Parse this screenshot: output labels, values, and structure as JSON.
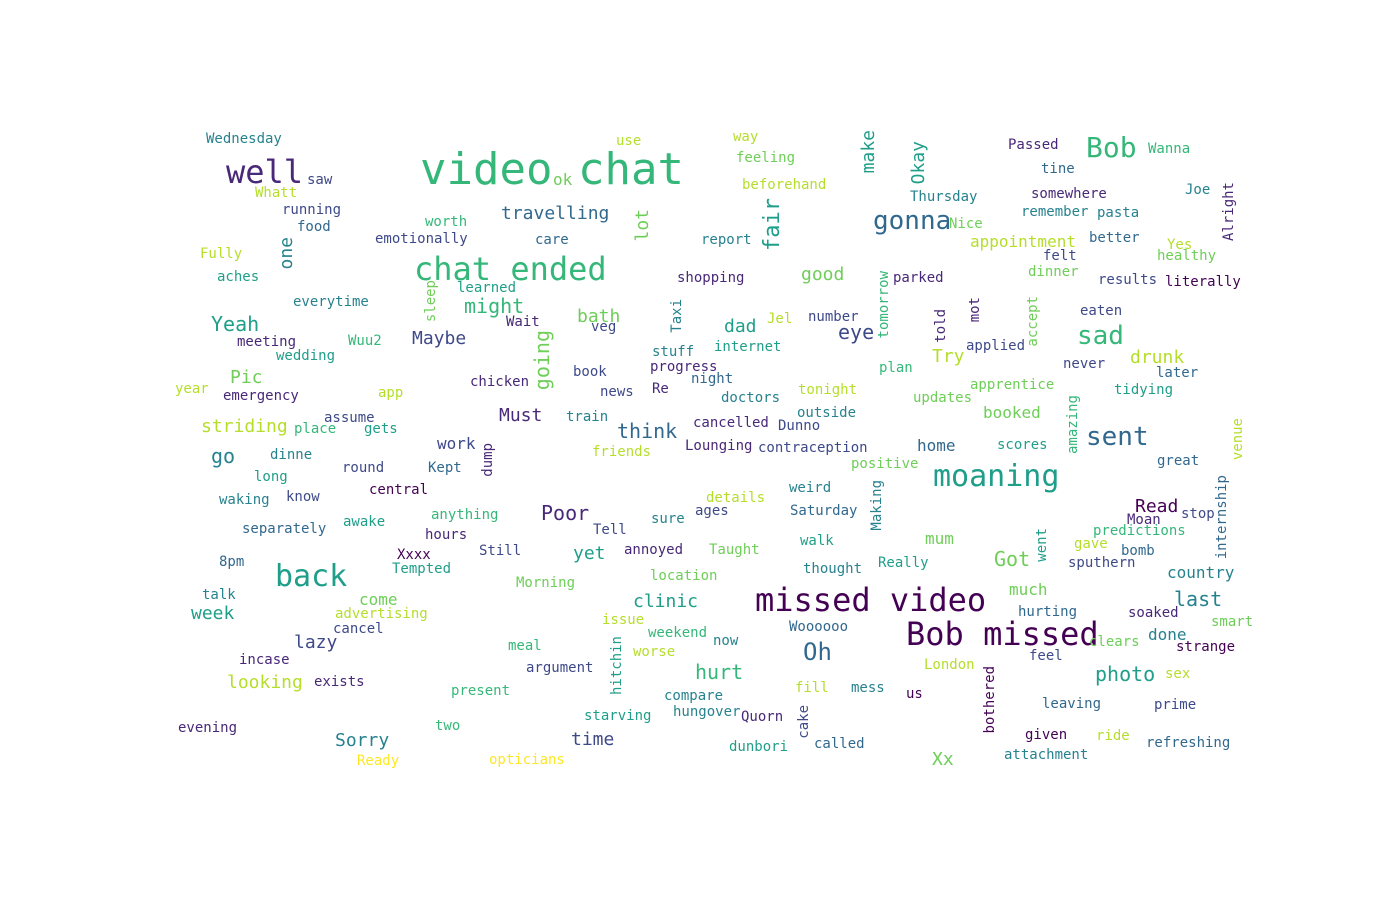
{
  "colors": {
    "background": "#ffffff",
    "palette": [
      "#440154",
      "#482878",
      "#3e4989",
      "#31688e",
      "#26828e",
      "#1f9e89",
      "#35b779",
      "#6ece58",
      "#b5de2b",
      "#fde725"
    ]
  },
  "words": [
    {
      "text": "video",
      "c": 6,
      "vertical": false
    },
    {
      "text": "chat",
      "c": 6,
      "vertical": false
    },
    {
      "text": "ok",
      "c": 7,
      "vertical": false
    },
    {
      "text": "chat ended",
      "c": 6,
      "vertical": false
    },
    {
      "text": "missed video",
      "c": 0,
      "vertical": false
    },
    {
      "text": "Bob missed",
      "c": 0,
      "vertical": false
    },
    {
      "text": "well",
      "c": 1,
      "vertical": false
    },
    {
      "text": "back",
      "c": 5,
      "vertical": false
    },
    {
      "text": "moaning",
      "c": 5,
      "vertical": false
    },
    {
      "text": "sent",
      "c": 3,
      "vertical": false
    },
    {
      "text": "gonna",
      "c": 3,
      "vertical": false
    },
    {
      "text": "Bob",
      "c": 6,
      "vertical": false
    },
    {
      "text": "sad",
      "c": 6,
      "vertical": false
    },
    {
      "text": "Oh",
      "c": 3,
      "vertical": false
    },
    {
      "text": "travelling",
      "c": 3,
      "vertical": false
    },
    {
      "text": "might",
      "c": 6,
      "vertical": false
    },
    {
      "text": "Yeah",
      "c": 5,
      "vertical": false
    },
    {
      "text": "think",
      "c": 3,
      "vertical": false
    },
    {
      "text": "eye",
      "c": 2,
      "vertical": false
    },
    {
      "text": "Poor",
      "c": 1,
      "vertical": false
    },
    {
      "text": "hurt",
      "c": 6,
      "vertical": false
    },
    {
      "text": "photo",
      "c": 5,
      "vertical": false
    },
    {
      "text": "last",
      "c": 4,
      "vertical": false
    },
    {
      "text": "Got",
      "c": 7,
      "vertical": false
    },
    {
      "text": "go",
      "c": 4,
      "vertical": false
    },
    {
      "text": "appointment",
      "c": 8,
      "vertical": false
    },
    {
      "text": "work",
      "c": 2,
      "vertical": false
    },
    {
      "text": "home",
      "c": 3,
      "vertical": false
    },
    {
      "text": "booked",
      "c": 7,
      "vertical": false
    },
    {
      "text": "lazy",
      "c": 2,
      "vertical": false
    },
    {
      "text": "clinic",
      "c": 5,
      "vertical": false
    },
    {
      "text": "Sorry",
      "c": 4,
      "vertical": false
    },
    {
      "text": "time",
      "c": 2,
      "vertical": false
    },
    {
      "text": "yet",
      "c": 5,
      "vertical": false
    },
    {
      "text": "mum",
      "c": 7,
      "vertical": false
    },
    {
      "text": "much",
      "c": 7,
      "vertical": false
    },
    {
      "text": "country",
      "c": 4,
      "vertical": false
    },
    {
      "text": "done",
      "c": 4,
      "vertical": false
    },
    {
      "text": "looking",
      "c": 8,
      "vertical": false
    },
    {
      "text": "Must",
      "c": 1,
      "vertical": false
    },
    {
      "text": "Maybe",
      "c": 2,
      "vertical": false
    },
    {
      "text": "bath",
      "c": 7,
      "vertical": false
    },
    {
      "text": "dad",
      "c": 5,
      "vertical": false
    },
    {
      "text": "good",
      "c": 7,
      "vertical": false
    },
    {
      "text": "drunk",
      "c": 8,
      "vertical": false
    },
    {
      "text": "Try",
      "c": 8,
      "vertical": false
    },
    {
      "text": "Pic",
      "c": 7,
      "vertical": false
    },
    {
      "text": "striding",
      "c": 8,
      "vertical": false
    },
    {
      "text": "come",
      "c": 7,
      "vertical": false
    },
    {
      "text": "week",
      "c": 5,
      "vertical": false
    },
    {
      "text": "Read",
      "c": 0,
      "vertical": false
    },
    {
      "text": "Xx",
      "c": 7,
      "vertical": false
    },
    {
      "text": "Wednesday",
      "c": 4,
      "vertical": false
    },
    {
      "text": "use",
      "c": 8,
      "vertical": false
    },
    {
      "text": "way",
      "c": 8,
      "vertical": false
    },
    {
      "text": "feeling",
      "c": 7,
      "vertical": false
    },
    {
      "text": "beforehand",
      "c": 8,
      "vertical": false
    },
    {
      "text": "Passed",
      "c": 1,
      "vertical": false
    },
    {
      "text": "tine",
      "c": 3,
      "vertical": false
    },
    {
      "text": "Wanna",
      "c": 6,
      "vertical": false
    },
    {
      "text": "saw",
      "c": 2,
      "vertical": false
    },
    {
      "text": "Whatt",
      "c": 8,
      "vertical": false
    },
    {
      "text": "running",
      "c": 2,
      "vertical": false
    },
    {
      "text": "food",
      "c": 3,
      "vertical": false
    },
    {
      "text": "Thursday",
      "c": 4,
      "vertical": false
    },
    {
      "text": "somewhere",
      "c": 1,
      "vertical": false
    },
    {
      "text": "Joe",
      "c": 4,
      "vertical": false
    },
    {
      "text": "remember",
      "c": 4,
      "vertical": false
    },
    {
      "text": "pasta",
      "c": 4,
      "vertical": false
    },
    {
      "text": "worth",
      "c": 6,
      "vertical": false
    },
    {
      "text": "Nice",
      "c": 7,
      "vertical": false
    },
    {
      "text": "emotionally",
      "c": 2,
      "vertical": false
    },
    {
      "text": "care",
      "c": 3,
      "vertical": false
    },
    {
      "text": "report",
      "c": 4,
      "vertical": false
    },
    {
      "text": "better",
      "c": 3,
      "vertical": false
    },
    {
      "text": "Yes",
      "c": 8,
      "vertical": false
    },
    {
      "text": "Fully",
      "c": 8,
      "vertical": false
    },
    {
      "text": "felt",
      "c": 2,
      "vertical": false
    },
    {
      "text": "healthy",
      "c": 7,
      "vertical": false
    },
    {
      "text": "aches",
      "c": 5,
      "vertical": false
    },
    {
      "text": "shopping",
      "c": 1,
      "vertical": false
    },
    {
      "text": "parked",
      "c": 1,
      "vertical": false
    },
    {
      "text": "dinner",
      "c": 7,
      "vertical": false
    },
    {
      "text": "results",
      "c": 2,
      "vertical": false
    },
    {
      "text": "literally",
      "c": 0,
      "vertical": false
    },
    {
      "text": "learned",
      "c": 5,
      "vertical": false
    },
    {
      "text": "everytime",
      "c": 4,
      "vertical": false
    },
    {
      "text": "eaten",
      "c": 2,
      "vertical": false
    },
    {
      "text": "Wait",
      "c": 1,
      "vertical": false
    },
    {
      "text": "veg",
      "c": 2,
      "vertical": false
    },
    {
      "text": "Jel",
      "c": 8,
      "vertical": false
    },
    {
      "text": "number",
      "c": 2,
      "vertical": false
    },
    {
      "text": "meeting",
      "c": 1,
      "vertical": false
    },
    {
      "text": "Wuu2",
      "c": 6,
      "vertical": false
    },
    {
      "text": "wedding",
      "c": 5,
      "vertical": false
    },
    {
      "text": "stuff",
      "c": 4,
      "vertical": false
    },
    {
      "text": "internet",
      "c": 5,
      "vertical": false
    },
    {
      "text": "applied",
      "c": 2,
      "vertical": false
    },
    {
      "text": "plan",
      "c": 6,
      "vertical": false
    },
    {
      "text": "never",
      "c": 2,
      "vertical": false
    },
    {
      "text": "progress",
      "c": 1,
      "vertical": false
    },
    {
      "text": "book",
      "c": 2,
      "vertical": false
    },
    {
      "text": "night",
      "c": 3,
      "vertical": false
    },
    {
      "text": "later",
      "c": 3,
      "vertical": false
    },
    {
      "text": "chicken",
      "c": 1,
      "vertical": false
    },
    {
      "text": "year",
      "c": 8,
      "vertical": false
    },
    {
      "text": "app",
      "c": 8,
      "vertical": false
    },
    {
      "text": "news",
      "c": 2,
      "vertical": false
    },
    {
      "text": "Re",
      "c": 1,
      "vertical": false
    },
    {
      "text": "tonight",
      "c": 8,
      "vertical": false
    },
    {
      "text": "apprentice",
      "c": 7,
      "vertical": false
    },
    {
      "text": "tidying",
      "c": 5,
      "vertical": false
    },
    {
      "text": "emergency",
      "c": 1,
      "vertical": false
    },
    {
      "text": "doctors",
      "c": 4,
      "vertical": false
    },
    {
      "text": "updates",
      "c": 7,
      "vertical": false
    },
    {
      "text": "assume",
      "c": 2,
      "vertical": false
    },
    {
      "text": "train",
      "c": 4,
      "vertical": false
    },
    {
      "text": "outside",
      "c": 4,
      "vertical": false
    },
    {
      "text": "place",
      "c": 6,
      "vertical": false
    },
    {
      "text": "gets",
      "c": 5,
      "vertical": false
    },
    {
      "text": "cancelled",
      "c": 1,
      "vertical": false
    },
    {
      "text": "Dunno",
      "c": 2,
      "vertical": false
    },
    {
      "text": "Lounging",
      "c": 1,
      "vertical": false
    },
    {
      "text": "contraception",
      "c": 2,
      "vertical": false
    },
    {
      "text": "friends",
      "c": 8,
      "vertical": false
    },
    {
      "text": "scores",
      "c": 5,
      "vertical": false
    },
    {
      "text": "dinne",
      "c": 4,
      "vertical": false
    },
    {
      "text": "positive",
      "c": 7,
      "vertical": false
    },
    {
      "text": "great",
      "c": 3,
      "vertical": false
    },
    {
      "text": "round",
      "c": 2,
      "vertical": false
    },
    {
      "text": "Kept",
      "c": 3,
      "vertical": false
    },
    {
      "text": "long",
      "c": 5,
      "vertical": false
    },
    {
      "text": "central",
      "c": 0,
      "vertical": false
    },
    {
      "text": "know",
      "c": 2,
      "vertical": false
    },
    {
      "text": "weird",
      "c": 4,
      "vertical": false
    },
    {
      "text": "waking",
      "c": 4,
      "vertical": false
    },
    {
      "text": "details",
      "c": 8,
      "vertical": false
    },
    {
      "text": "ages",
      "c": 2,
      "vertical": false
    },
    {
      "text": "Saturday",
      "c": 3,
      "vertical": false
    },
    {
      "text": "anything",
      "c": 6,
      "vertical": false
    },
    {
      "text": "sure",
      "c": 4,
      "vertical": false
    },
    {
      "text": "stop",
      "c": 2,
      "vertical": false
    },
    {
      "text": "Moan",
      "c": 1,
      "vertical": false
    },
    {
      "text": "awake",
      "c": 5,
      "vertical": false
    },
    {
      "text": "separately",
      "c": 3,
      "vertical": false
    },
    {
      "text": "Tell",
      "c": 2,
      "vertical": false
    },
    {
      "text": "predictions",
      "c": 6,
      "vertical": false
    },
    {
      "text": "hours",
      "c": 1,
      "vertical": false
    },
    {
      "text": "gave",
      "c": 8,
      "vertical": false
    },
    {
      "text": "bomb",
      "c": 3,
      "vertical": false
    },
    {
      "text": "Still",
      "c": 2,
      "vertical": false
    },
    {
      "text": "annoyed",
      "c": 1,
      "vertical": false
    },
    {
      "text": "Taught",
      "c": 7,
      "vertical": false
    },
    {
      "text": "walk",
      "c": 5,
      "vertical": false
    },
    {
      "text": "8pm",
      "c": 3,
      "vertical": false
    },
    {
      "text": "Xxxx",
      "c": 0,
      "vertical": false
    },
    {
      "text": "Tempted",
      "c": 5,
      "vertical": false
    },
    {
      "text": "thought",
      "c": 4,
      "vertical": false
    },
    {
      "text": "Really",
      "c": 5,
      "vertical": false
    },
    {
      "text": "sputhern",
      "c": 2,
      "vertical": false
    },
    {
      "text": "location",
      "c": 7,
      "vertical": false
    },
    {
      "text": "Morning",
      "c": 7,
      "vertical": false
    },
    {
      "text": "talk",
      "c": 4,
      "vertical": false
    },
    {
      "text": "advertising",
      "c": 8,
      "vertical": false
    },
    {
      "text": "hurting",
      "c": 3,
      "vertical": false
    },
    {
      "text": "soaked",
      "c": 1,
      "vertical": false
    },
    {
      "text": "issue",
      "c": 8,
      "vertical": false
    },
    {
      "text": "weekend",
      "c": 6,
      "vertical": false
    },
    {
      "text": "Woooooo",
      "c": 3,
      "vertical": false
    },
    {
      "text": "smart",
      "c": 7,
      "vertical": false
    },
    {
      "text": "cancel",
      "c": 2,
      "vertical": false
    },
    {
      "text": "now",
      "c": 4,
      "vertical": false
    },
    {
      "text": "clears",
      "c": 7,
      "vertical": false
    },
    {
      "text": "strange",
      "c": 0,
      "vertical": false
    },
    {
      "text": "meal",
      "c": 6,
      "vertical": false
    },
    {
      "text": "worse",
      "c": 8,
      "vertical": false
    },
    {
      "text": "feel",
      "c": 2,
      "vertical": false
    },
    {
      "text": "incase",
      "c": 1,
      "vertical": false
    },
    {
      "text": "argument",
      "c": 2,
      "vertical": false
    },
    {
      "text": "London",
      "c": 8,
      "vertical": false
    },
    {
      "text": "sex",
      "c": 8,
      "vertical": false
    },
    {
      "text": "exists",
      "c": 1,
      "vertical": false
    },
    {
      "text": "fill",
      "c": 8,
      "vertical": false
    },
    {
      "text": "mess",
      "c": 4,
      "vertical": false
    },
    {
      "text": "present",
      "c": 6,
      "vertical": false
    },
    {
      "text": "compare",
      "c": 4,
      "vertical": false
    },
    {
      "text": "us",
      "c": 0,
      "vertical": false
    },
    {
      "text": "leaving",
      "c": 3,
      "vertical": false
    },
    {
      "text": "prime",
      "c": 2,
      "vertical": false
    },
    {
      "text": "starving",
      "c": 5,
      "vertical": false
    },
    {
      "text": "hungover",
      "c": 4,
      "vertical": false
    },
    {
      "text": "Quorn",
      "c": 1,
      "vertical": false
    },
    {
      "text": "evening",
      "c": 1,
      "vertical": false
    },
    {
      "text": "two",
      "c": 6,
      "vertical": false
    },
    {
      "text": "given",
      "c": 0,
      "vertical": false
    },
    {
      "text": "ride",
      "c": 8,
      "vertical": false
    },
    {
      "text": "refreshing",
      "c": 3,
      "vertical": false
    },
    {
      "text": "dunbori",
      "c": 5,
      "vertical": false
    },
    {
      "text": "called",
      "c": 3,
      "vertical": false
    },
    {
      "text": "attachment",
      "c": 4,
      "vertical": false
    },
    {
      "text": "Ready",
      "c": 9,
      "vertical": false
    },
    {
      "text": "opticians",
      "c": 9,
      "vertical": false
    },
    {
      "text": "make",
      "c": 5,
      "vertical": true
    },
    {
      "text": "Okay",
      "c": 5,
      "vertical": true
    },
    {
      "text": "Alright",
      "c": 1,
      "vertical": true
    },
    {
      "text": "fair",
      "c": 5,
      "vertical": true
    },
    {
      "text": "lot",
      "c": 7,
      "vertical": true
    },
    {
      "text": "one",
      "c": 4,
      "vertical": true
    },
    {
      "text": "sleep",
      "c": 7,
      "vertical": true
    },
    {
      "text": "Taxi",
      "c": 4,
      "vertical": true
    },
    {
      "text": "tomorrow",
      "c": 6,
      "vertical": true
    },
    {
      "text": "told",
      "c": 1,
      "vertical": true
    },
    {
      "text": "mot",
      "c": 1,
      "vertical": true
    },
    {
      "text": "accept",
      "c": 7,
      "vertical": true
    },
    {
      "text": "going",
      "c": 7,
      "vertical": true
    },
    {
      "text": "amazing",
      "c": 6,
      "vertical": true
    },
    {
      "text": "venue",
      "c": 8,
      "vertical": true
    },
    {
      "text": "dump",
      "c": 1,
      "vertical": true
    },
    {
      "text": "Making",
      "c": 4,
      "vertical": true
    },
    {
      "text": "internship",
      "c": 3,
      "vertical": true
    },
    {
      "text": "went",
      "c": 5,
      "vertical": true
    },
    {
      "text": "hitchin",
      "c": 5,
      "vertical": true
    },
    {
      "text": "cake",
      "c": 2,
      "vertical": true
    },
    {
      "text": "bothered",
      "c": 0,
      "vertical": true
    }
  ]
}
